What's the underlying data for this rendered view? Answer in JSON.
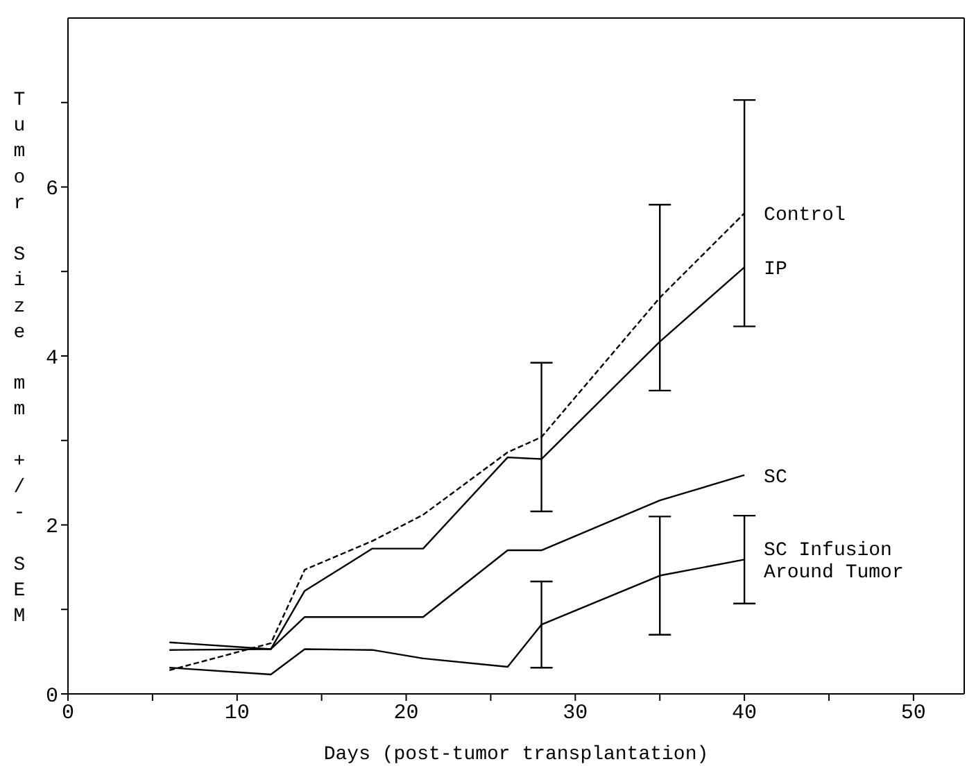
{
  "chart_data": {
    "type": "line",
    "xlabel": "Days (post-tumor transplantation)",
    "ylabel": "Tumor Size mm +/- SEM",
    "x": [
      6,
      12,
      14,
      18,
      21,
      26,
      28,
      35,
      40
    ],
    "series": [
      {
        "name": "Control",
        "color": "#000000",
        "line_style": "dashed",
        "values": [
          0.28,
          0.6,
          1.47,
          1.81,
          2.12,
          2.86,
          3.04,
          4.69,
          5.69
        ],
        "errors": [
          null,
          null,
          null,
          null,
          null,
          null,
          0.88,
          1.1,
          1.34
        ]
      },
      {
        "name": "IP",
        "color": "#000000",
        "values": [
          0.52,
          0.53,
          1.22,
          1.72,
          1.72,
          2.8,
          2.78,
          4.17,
          5.05
        ]
      },
      {
        "name": "SC",
        "color": "#000000",
        "values": [
          0.61,
          0.53,
          0.91,
          0.91,
          0.91,
          1.7,
          1.7,
          2.29,
          2.59
        ]
      },
      {
        "name": "SC Infusion Around Tumor",
        "color": "#000000",
        "values": [
          0.31,
          0.23,
          0.53,
          0.52,
          0.42,
          0.32,
          0.82,
          1.4,
          1.59
        ],
        "errors": [
          null,
          null,
          null,
          null,
          null,
          null,
          0.51,
          0.7,
          0.52
        ]
      }
    ],
    "xlim": [
      0,
      53
    ],
    "xticks": [
      0,
      {
        "value": 5,
        "label": null
      },
      10,
      {
        "value": 15,
        "label": null
      },
      20,
      {
        "value": 25,
        "label": null
      },
      30,
      {
        "value": 35,
        "label": null
      },
      40,
      {
        "value": 45,
        "label": null
      },
      50
    ],
    "ylim": [
      0,
      8
    ],
    "yticks": [
      0,
      {
        "value": 1,
        "label": null
      },
      2,
      {
        "value": 3,
        "label": null
      },
      4,
      {
        "value": 5,
        "label": null
      },
      6,
      {
        "value": 7,
        "label": null
      }
    ],
    "grid": false,
    "legend": false,
    "marker": "none",
    "line_style": "solid"
  }
}
